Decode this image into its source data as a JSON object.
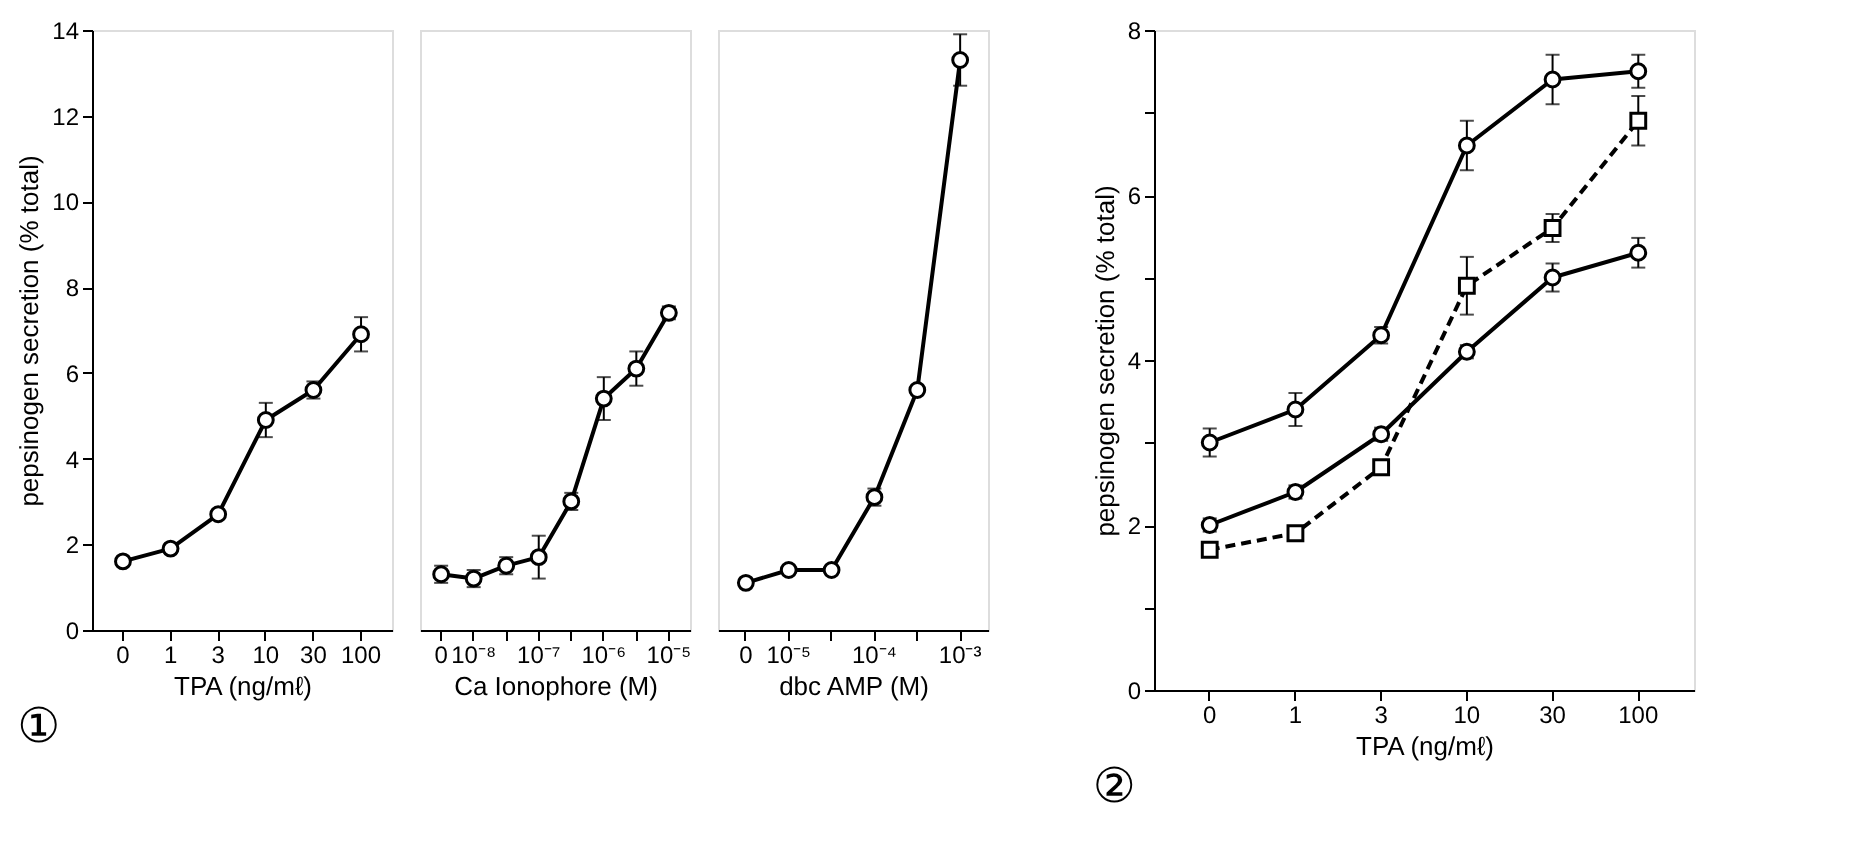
{
  "chart_data": [
    {
      "type": "line",
      "xlabel": "TPA (ng/mℓ)",
      "ylabel": "pepsinogen secretion (% total)",
      "categories": [
        "0",
        "1",
        "3",
        "10",
        "30",
        "100"
      ],
      "ylim": [
        0,
        14
      ],
      "yticks": [
        0,
        2,
        4,
        6,
        8,
        10,
        12,
        14
      ],
      "marker": "circle",
      "line_style": "solid",
      "annotations": [
        "①"
      ],
      "series": [
        {
          "color": "#000000",
          "values": [
            1.6,
            1.9,
            2.7,
            4.9,
            5.6,
            6.9
          ],
          "errors": [
            0.1,
            0.1,
            0.1,
            0.4,
            0.2,
            0.4
          ]
        }
      ]
    },
    {
      "type": "line",
      "xlabel": "Ca Ionophore (M)",
      "categories": [
        "0",
        "10⁻⁸",
        null,
        "10⁻⁷",
        null,
        "10⁻⁶",
        null,
        "10⁻⁵"
      ],
      "ylim": [
        0,
        14
      ],
      "tick_labels": "x",
      "marker": "circle",
      "line_style": "solid",
      "series": [
        {
          "color": "#000000",
          "values": [
            1.3,
            1.2,
            1.5,
            1.7,
            3.0,
            5.4,
            6.1,
            7.4
          ],
          "errors": [
            0.2,
            0.2,
            0.2,
            0.5,
            0.2,
            0.5,
            0.4,
            0.15
          ]
        }
      ]
    },
    {
      "type": "line",
      "xlabel": "dbc AMP (M)",
      "categories": [
        "0",
        "10⁻⁵",
        null,
        "10⁻⁴",
        null,
        "10⁻³"
      ],
      "ylim": [
        0,
        14
      ],
      "tick_labels": "x",
      "marker": "circle",
      "line_style": "solid",
      "series": [
        {
          "color": "#000000",
          "values": [
            1.1,
            1.4,
            1.4,
            3.1,
            5.6,
            13.3
          ],
          "errors": [
            0.1,
            0.1,
            0.1,
            0.2,
            0.1,
            0.6
          ]
        }
      ]
    },
    {
      "type": "line",
      "xlabel": "TPA (ng/mℓ)",
      "ylabel": "pepsinogen secretion (% total)",
      "categories": [
        "0",
        "1",
        "3",
        "10",
        "30",
        "100"
      ],
      "ylim": [
        0,
        8
      ],
      "yticks": [
        0,
        {
          "value": 1,
          "label": null
        },
        2,
        {
          "value": 3,
          "label": null
        },
        4,
        {
          "value": 5,
          "label": null
        },
        6,
        {
          "value": 7,
          "label": null
        },
        8
      ],
      "annotations": [
        "②"
      ],
      "series": [
        {
          "color": "#000000",
          "marker": "circle",
          "line_style": "solid",
          "values": [
            3.0,
            3.4,
            4.3,
            6.6,
            7.4,
            7.5
          ],
          "errors": [
            0.17,
            0.2,
            0.1,
            0.3,
            0.3,
            0.2
          ]
        },
        {
          "color": "#000000",
          "marker": "circle",
          "line_style": "solid",
          "values": [
            2.0,
            2.4,
            3.1,
            4.1,
            5.0,
            5.3
          ],
          "errors": [
            0.08,
            0.08,
            0.08,
            0.08,
            0.17,
            0.18
          ]
        },
        {
          "color": "#000000",
          "marker": "square",
          "line_style": "dashed",
          "values": [
            1.7,
            1.9,
            2.7,
            4.9,
            5.6,
            6.9
          ],
          "errors": [
            0.08,
            0.08,
            0.08,
            0.35,
            0.17,
            0.3
          ]
        }
      ]
    }
  ]
}
